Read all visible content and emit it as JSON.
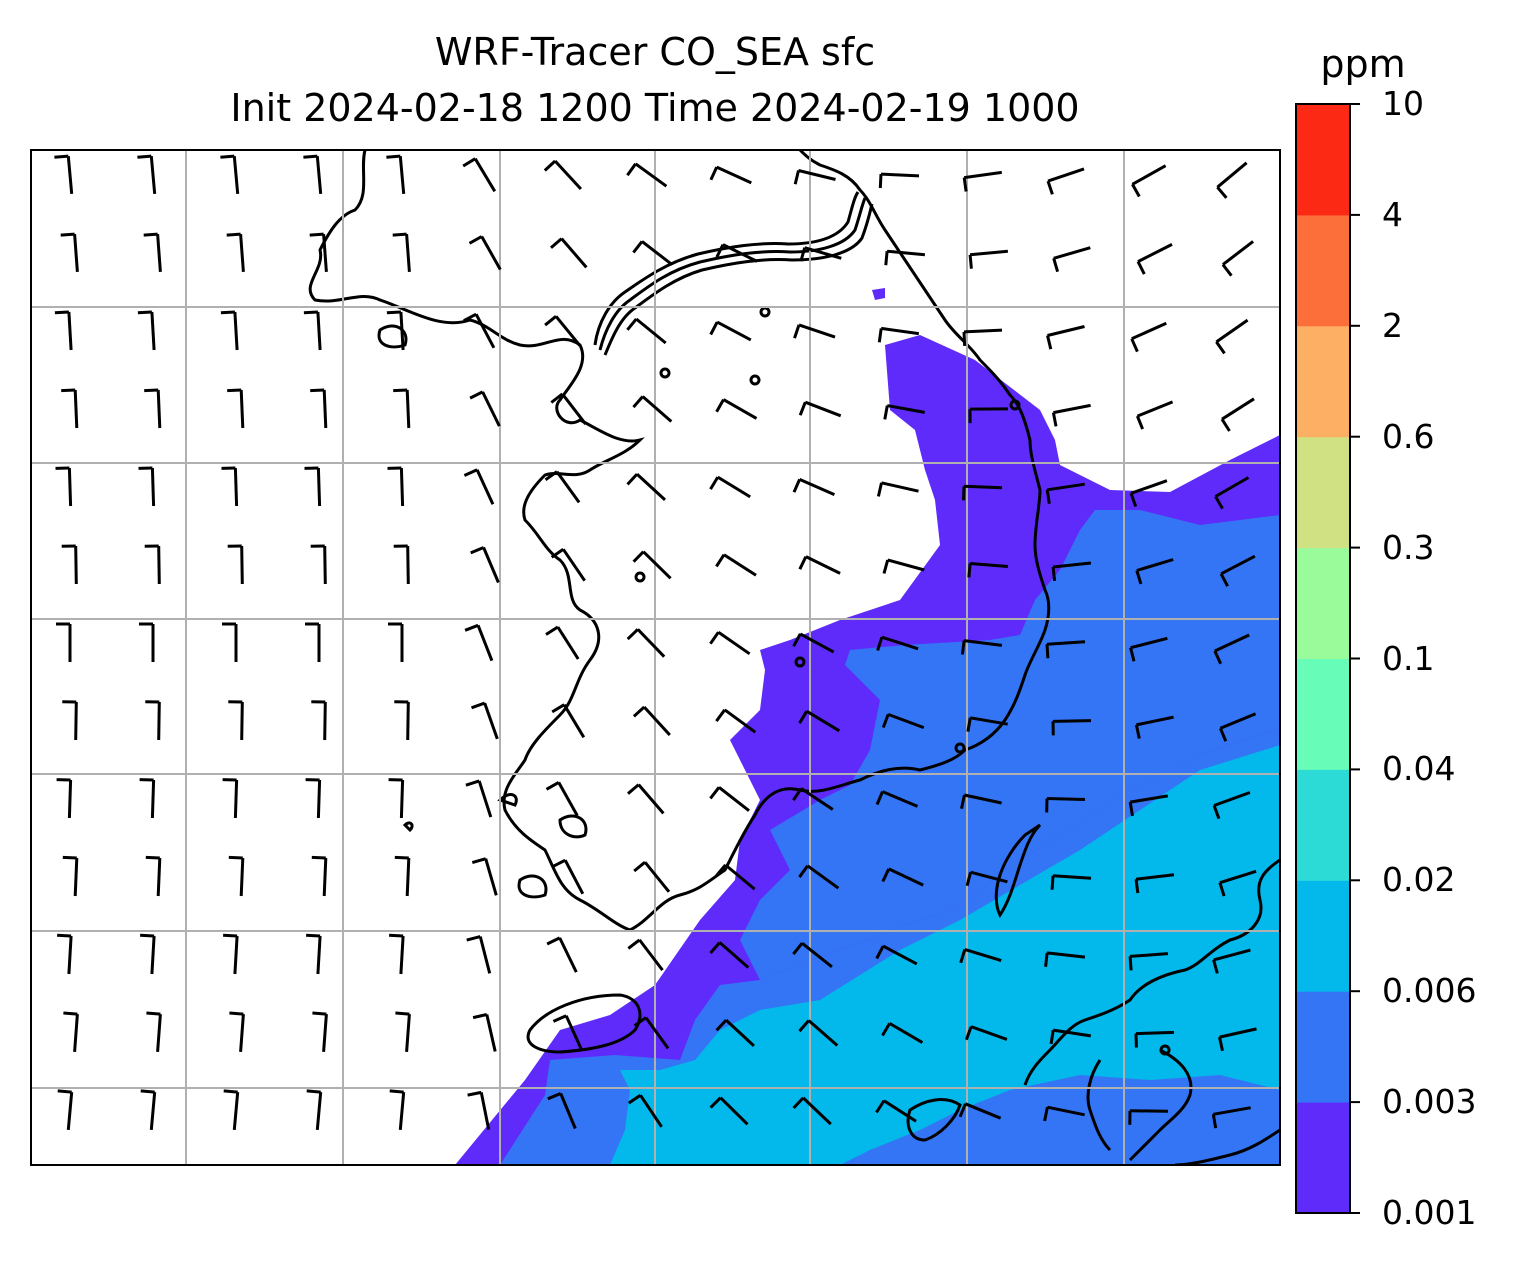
{
  "title": {
    "line1": "WRF-Tracer CO_SEA sfc",
    "line2": "Init 2024-02-18 1200 Time 2024-02-19 1000"
  },
  "colorbar": {
    "unit": "ppm",
    "levels": [
      "0.001",
      "0.003",
      "0.006",
      "0.02",
      "0.04",
      "0.1",
      "0.3",
      "0.6",
      "2",
      "4",
      "10"
    ],
    "colors": [
      "#5f2bfb",
      "#3475f5",
      "#03b8ea",
      "#2ddbd6",
      "#67fcb8",
      "#9afb9a",
      "#cfe183",
      "#fdb063",
      "#fd6f3a",
      "#fc2a15"
    ]
  },
  "map": {
    "gridline_color": "#b0b0b0",
    "coastline_color": "#000000",
    "wind_barbs": "black"
  }
}
